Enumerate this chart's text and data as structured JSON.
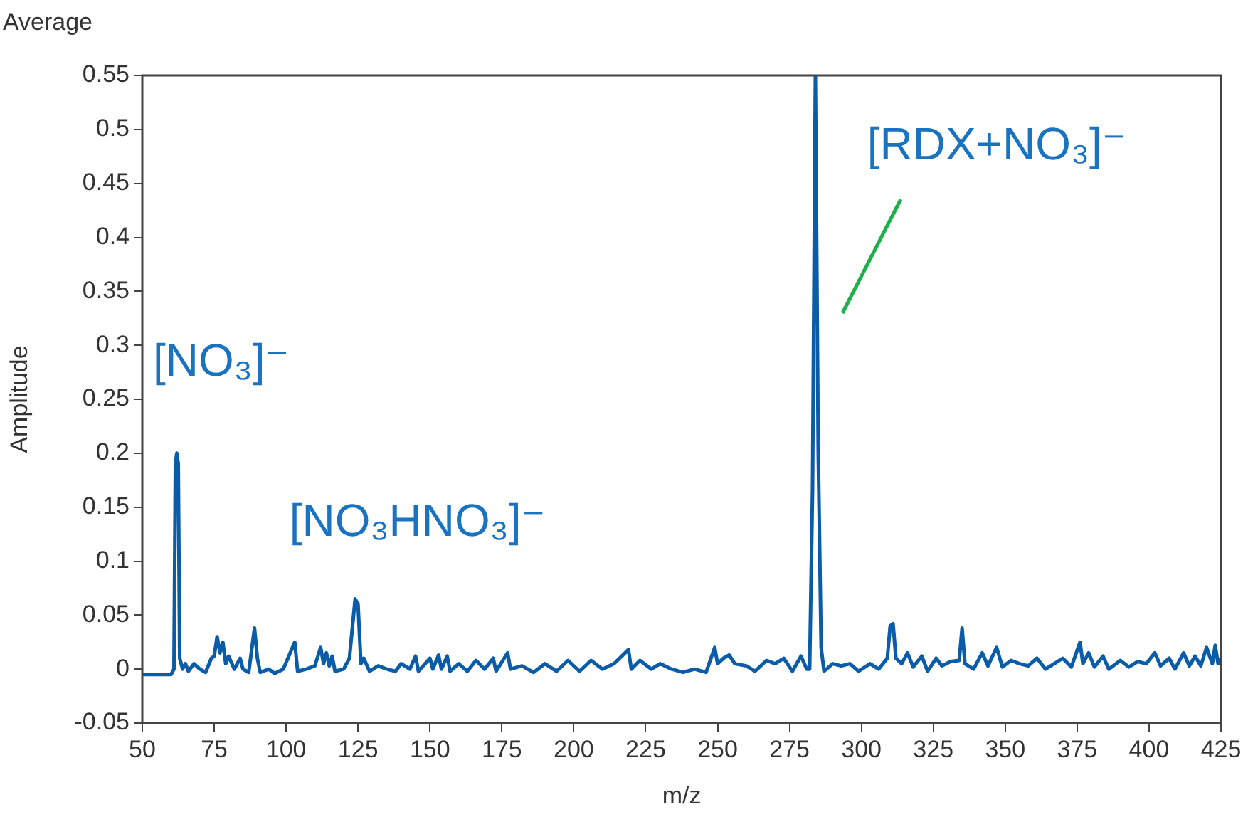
{
  "chart_data": {
    "type": "line",
    "title": "Average",
    "xlabel": "m/z",
    "ylabel": "Amplitude",
    "xlim": [
      50,
      425
    ],
    "xticks": [
      50,
      75,
      100,
      125,
      150,
      175,
      200,
      225,
      250,
      275,
      300,
      325,
      350,
      375,
      400,
      425
    ],
    "ylim": [
      -0.05,
      0.55
    ],
    "yticks": [
      -0.05,
      0,
      0.05,
      0.1,
      0.15,
      0.2,
      0.25,
      0.3,
      0.35,
      0.4,
      0.45,
      0.5,
      0.55
    ],
    "grid": false,
    "legend": false,
    "marker": "none",
    "line_style": "solid",
    "annotations": [
      "[NO₃]⁻",
      "[NO₃HNO₃]⁻",
      "[RDX+NO₃]⁻"
    ],
    "series": [
      {
        "color": "#0b5ca8",
        "x": [
          50,
          60,
          61,
          61.5,
          62,
          62.5,
          63,
          64,
          65,
          66,
          68,
          70,
          72,
          74,
          75,
          76,
          77,
          78,
          79,
          80,
          82,
          84,
          85,
          87,
          89,
          90,
          91,
          94,
          96,
          99,
          103,
          104,
          107,
          110,
          112,
          113,
          114,
          115,
          116,
          117,
          120,
          122,
          124,
          125,
          126,
          127,
          129,
          132,
          135,
          138,
          140,
          143,
          145,
          146,
          150,
          151,
          153,
          154,
          156,
          157,
          160,
          163,
          166,
          169,
          172,
          173,
          177,
          178,
          182,
          186,
          190,
          194,
          198,
          202,
          206,
          210,
          214,
          219,
          220,
          223,
          227,
          230,
          234,
          238,
          242,
          246,
          249,
          250,
          252,
          254,
          256,
          260,
          263,
          267,
          270,
          273,
          276,
          279,
          281,
          282,
          283,
          284,
          285,
          286,
          287,
          290,
          293,
          296,
          299,
          303,
          306,
          309,
          310,
          311,
          312,
          314,
          316,
          318,
          321,
          323,
          326,
          328,
          331,
          334,
          335,
          336,
          339,
          342,
          344,
          347,
          349,
          352,
          355,
          358,
          361,
          364,
          367,
          370,
          373,
          376,
          377,
          379,
          381,
          384,
          386,
          390,
          393,
          396,
          399,
          402,
          404,
          407,
          409,
          412,
          414,
          416,
          418,
          420,
          422,
          423,
          424,
          425
        ],
        "values": [
          -0.005,
          -0.005,
          0.0,
          0.19,
          0.2,
          0.19,
          0.01,
          0.0,
          0.005,
          -0.002,
          0.005,
          0.0,
          -0.003,
          0.01,
          0.012,
          0.03,
          0.015,
          0.025,
          0.005,
          0.012,
          0.0,
          0.01,
          0.0,
          -0.003,
          0.038,
          0.01,
          -0.003,
          0.0,
          -0.004,
          0.0,
          0.025,
          -0.002,
          0.0,
          0.003,
          0.02,
          0.005,
          0.015,
          0.003,
          0.012,
          -0.002,
          0.0,
          0.01,
          0.065,
          0.06,
          0.005,
          0.01,
          -0.002,
          0.003,
          0.0,
          -0.002,
          0.005,
          0.0,
          0.012,
          -0.002,
          0.01,
          0.0,
          0.013,
          0.0,
          0.012,
          -0.002,
          0.005,
          -0.002,
          0.008,
          0.0,
          0.01,
          -0.002,
          0.015,
          0.0,
          0.003,
          -0.003,
          0.005,
          -0.002,
          0.008,
          -0.002,
          0.008,
          0.0,
          0.005,
          0.018,
          0.0,
          0.008,
          0.0,
          0.005,
          0.0,
          -0.003,
          0.0,
          -0.003,
          0.02,
          0.005,
          0.01,
          0.013,
          0.005,
          0.003,
          -0.002,
          0.008,
          0.005,
          0.01,
          -0.002,
          0.012,
          0.0,
          0.0,
          0.165,
          0.55,
          0.2,
          0.02,
          -0.002,
          0.005,
          0.003,
          0.005,
          -0.002,
          0.005,
          0.0,
          0.01,
          0.04,
          0.042,
          0.01,
          0.005,
          0.015,
          0.002,
          0.012,
          -0.002,
          0.01,
          0.003,
          0.007,
          0.008,
          0.038,
          0.005,
          0.0,
          0.015,
          0.003,
          0.02,
          0.002,
          0.008,
          0.005,
          0.003,
          0.01,
          0.0,
          0.005,
          0.01,
          0.002,
          0.025,
          0.005,
          0.015,
          0.002,
          0.012,
          0.0,
          0.008,
          0.002,
          0.007,
          0.005,
          0.015,
          0.003,
          0.01,
          0.0,
          0.015,
          0.003,
          0.012,
          0.003,
          0.02,
          0.005,
          0.022,
          0.005,
          0.01
        ]
      }
    ]
  }
}
